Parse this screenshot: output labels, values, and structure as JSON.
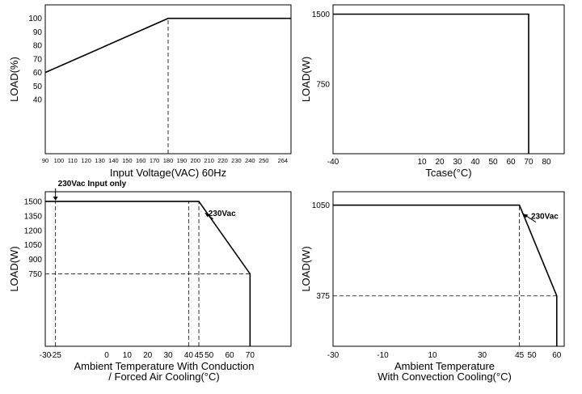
{
  "chart_data": [
    {
      "type": "line",
      "xlabel": "Input Voltage(VAC) 60Hz",
      "ylabel": "LOAD(%)",
      "xlim": [
        90,
        270
      ],
      "ylim": [
        0,
        110
      ],
      "x_ticks": [
        "90",
        "100",
        "110",
        "120",
        "130",
        "140",
        "150",
        "160",
        "170",
        "180",
        "190",
        "200",
        "210",
        "220",
        "230",
        "240",
        "250",
        "264"
      ],
      "y_ticks": [
        "40",
        "50",
        "60",
        "70",
        "80",
        "90",
        "100"
      ],
      "grid": false,
      "series": [
        {
          "x": [
            90,
            180,
            270
          ],
          "y": [
            60,
            100,
            100
          ]
        }
      ],
      "reference_lines": [
        {
          "x": [
            180,
            180
          ],
          "y": [
            0,
            100
          ]
        }
      ],
      "annotations": []
    },
    {
      "type": "line",
      "xlabel": "Tcase(°C)",
      "ylabel": "LOAD(W)",
      "xlim": [
        -40,
        90
      ],
      "ylim": [
        0,
        1600
      ],
      "x_ticks": [
        "-40",
        "10",
        "20",
        "30",
        "40",
        "50",
        "60",
        "70",
        "80"
      ],
      "y_ticks": [
        "750",
        "1500"
      ],
      "grid": false,
      "series": [
        {
          "x": [
            -40,
            70,
            70
          ],
          "y": [
            1500,
            1500,
            0
          ]
        }
      ],
      "reference_lines": [],
      "annotations": []
    },
    {
      "type": "line",
      "xlabel": "Ambient Temperature With Conduction / Forced Air Cooling(°C)",
      "xlabel_lines": [
        "Ambient Temperature With Conduction",
        "/ Forced Air Cooling(°C)"
      ],
      "ylabel": "LOAD(W)",
      "xlim": [
        -30,
        90
      ],
      "ylim": [
        0,
        1600
      ],
      "x_ticks": [
        "-30",
        "-25",
        "0",
        "10",
        "20",
        "30",
        "40",
        "45",
        "50",
        "60",
        "70"
      ],
      "y_ticks": [
        "750",
        "900",
        "1050",
        "1200",
        "1350",
        "1500"
      ],
      "grid": false,
      "series": [
        {
          "x": [
            -30,
            45,
            70,
            70
          ],
          "y": [
            1500,
            1500,
            750,
            0
          ]
        }
      ],
      "reference_lines": [
        {
          "x": [
            -25,
            -25
          ],
          "y": [
            0,
            1500
          ]
        },
        {
          "x": [
            40,
            40
          ],
          "y": [
            0,
            1500
          ]
        },
        {
          "x": [
            45,
            45
          ],
          "y": [
            0,
            1500
          ]
        },
        {
          "x": [
            -30,
            70
          ],
          "y": [
            750,
            750
          ]
        }
      ],
      "annotations": [
        {
          "text": "230Vac Input only",
          "x": -25,
          "y": 1500
        },
        {
          "text": "230Vac",
          "x": 52,
          "y": 1300
        }
      ]
    },
    {
      "type": "line",
      "xlabel": "Ambient Temperature With Convection Cooling(°C)",
      "xlabel_lines": [
        "Ambient Temperature",
        "With Convection Cooling(°C)"
      ],
      "ylabel": "LOAD(W)",
      "xlim": [
        -30,
        63
      ],
      "ylim": [
        0,
        1150
      ],
      "x_ticks": [
        "-30",
        "-10",
        "10",
        "30",
        "45",
        "50",
        "60"
      ],
      "y_ticks": [
        "375",
        "1050"
      ],
      "grid": false,
      "series": [
        {
          "x": [
            -30,
            45,
            60,
            60
          ],
          "y": [
            1050,
            1050,
            375,
            0
          ]
        }
      ],
      "reference_lines": [
        {
          "x": [
            45,
            45
          ],
          "y": [
            0,
            1050
          ]
        },
        {
          "x": [
            -30,
            60
          ],
          "y": [
            375,
            375
          ]
        }
      ],
      "annotations": [
        {
          "text": "230Vac",
          "x": 49,
          "y": 900
        }
      ]
    }
  ]
}
